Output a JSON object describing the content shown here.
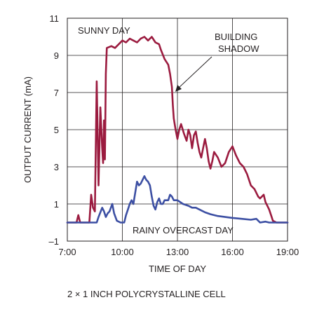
{
  "chart_data": {
    "type": "line",
    "xlabel": "TIME OF DAY",
    "ylabel": "OUTPUT CURRENT (mA)",
    "xlim": [
      7,
      19
    ],
    "ylim": [
      -1,
      11
    ],
    "x_ticks": [
      7,
      10,
      13,
      16,
      19
    ],
    "x_tick_labels": [
      "7:00",
      "10:00",
      "13:00",
      "16:00",
      "19:00"
    ],
    "y_ticks": [
      -1,
      1,
      3,
      5,
      7,
      9,
      11
    ],
    "y_tick_labels": [
      "–1",
      "1",
      "3",
      "5",
      "7",
      "9",
      "11"
    ],
    "grid": true,
    "series": [
      {
        "name": "SUNNY DAY",
        "color": "#9b1b3f",
        "points": [
          [
            7.0,
            0.0
          ],
          [
            7.5,
            0.0
          ],
          [
            7.6,
            0.4
          ],
          [
            7.7,
            0.0
          ],
          [
            8.2,
            0.0
          ],
          [
            8.3,
            1.5
          ],
          [
            8.4,
            0.8
          ],
          [
            8.5,
            0.6
          ],
          [
            8.6,
            7.6
          ],
          [
            8.7,
            2.0
          ],
          [
            8.8,
            6.2
          ],
          [
            8.9,
            4.0
          ],
          [
            8.95,
            3.2
          ],
          [
            9.0,
            5.5
          ],
          [
            9.05,
            3.4
          ],
          [
            9.1,
            8.0
          ],
          [
            9.15,
            9.4
          ],
          [
            9.4,
            9.5
          ],
          [
            9.6,
            9.4
          ],
          [
            9.8,
            9.6
          ],
          [
            10.0,
            9.8
          ],
          [
            10.2,
            9.7
          ],
          [
            10.4,
            9.9
          ],
          [
            10.6,
            9.8
          ],
          [
            10.8,
            9.7
          ],
          [
            11.0,
            9.9
          ],
          [
            11.2,
            10.0
          ],
          [
            11.4,
            9.8
          ],
          [
            11.6,
            10.0
          ],
          [
            11.8,
            9.7
          ],
          [
            12.0,
            9.6
          ],
          [
            12.1,
            9.3
          ],
          [
            12.3,
            8.8
          ],
          [
            12.5,
            8.5
          ],
          [
            12.6,
            8.0
          ],
          [
            12.7,
            7.3
          ],
          [
            12.75,
            6.3
          ],
          [
            12.8,
            5.6
          ],
          [
            12.9,
            5.0
          ],
          [
            13.0,
            4.5
          ],
          [
            13.1,
            5.0
          ],
          [
            13.2,
            5.3
          ],
          [
            13.35,
            4.8
          ],
          [
            13.5,
            4.4
          ],
          [
            13.6,
            5.0
          ],
          [
            13.7,
            4.7
          ],
          [
            13.8,
            4.0
          ],
          [
            13.9,
            4.7
          ],
          [
            14.0,
            4.9
          ],
          [
            14.1,
            4.3
          ],
          [
            14.2,
            3.8
          ],
          [
            14.3,
            3.5
          ],
          [
            14.4,
            4.0
          ],
          [
            14.5,
            4.5
          ],
          [
            14.6,
            4.0
          ],
          [
            14.7,
            3.3
          ],
          [
            14.8,
            2.9
          ],
          [
            14.9,
            3.3
          ],
          [
            15.0,
            3.8
          ],
          [
            15.2,
            3.5
          ],
          [
            15.4,
            3.0
          ],
          [
            15.6,
            3.2
          ],
          [
            15.8,
            3.8
          ],
          [
            16.0,
            4.1
          ],
          [
            16.2,
            3.6
          ],
          [
            16.4,
            3.2
          ],
          [
            16.6,
            3.0
          ],
          [
            16.8,
            2.6
          ],
          [
            17.0,
            2.0
          ],
          [
            17.2,
            1.8
          ],
          [
            17.3,
            1.6
          ],
          [
            17.4,
            1.4
          ],
          [
            17.5,
            1.3
          ],
          [
            17.7,
            1.5
          ],
          [
            17.8,
            1.1
          ],
          [
            17.9,
            0.9
          ],
          [
            18.0,
            0.7
          ],
          [
            18.1,
            0.4
          ],
          [
            18.2,
            0.1
          ],
          [
            18.4,
            0.0
          ],
          [
            19.0,
            0.0
          ]
        ]
      },
      {
        "name": "RAINY OVERCAST DAY",
        "color": "#3c4fa3",
        "points": [
          [
            7.0,
            0.0
          ],
          [
            8.6,
            0.0
          ],
          [
            8.7,
            0.3
          ],
          [
            8.9,
            0.8
          ],
          [
            9.0,
            0.6
          ],
          [
            9.1,
            0.3
          ],
          [
            9.2,
            0.5
          ],
          [
            9.3,
            0.6
          ],
          [
            9.45,
            1.0
          ],
          [
            9.55,
            0.5
          ],
          [
            9.7,
            0.1
          ],
          [
            9.9,
            0.0
          ],
          [
            10.1,
            0.0
          ],
          [
            10.2,
            0.4
          ],
          [
            10.3,
            0.7
          ],
          [
            10.4,
            1.0
          ],
          [
            10.5,
            1.2
          ],
          [
            10.6,
            1.0
          ],
          [
            10.7,
            1.6
          ],
          [
            10.8,
            2.2
          ],
          [
            10.9,
            2.0
          ],
          [
            11.0,
            2.1
          ],
          [
            11.2,
            2.5
          ],
          [
            11.3,
            2.3
          ],
          [
            11.4,
            2.2
          ],
          [
            11.5,
            2.0
          ],
          [
            11.6,
            1.4
          ],
          [
            11.7,
            0.9
          ],
          [
            11.8,
            0.7
          ],
          [
            11.9,
            1.1
          ],
          [
            12.0,
            1.3
          ],
          [
            12.1,
            1.0
          ],
          [
            12.2,
            1.0
          ],
          [
            12.3,
            1.2
          ],
          [
            12.5,
            1.2
          ],
          [
            12.6,
            1.5
          ],
          [
            12.7,
            1.4
          ],
          [
            12.8,
            1.2
          ],
          [
            13.0,
            1.2
          ],
          [
            13.3,
            1.0
          ],
          [
            13.6,
            0.9
          ],
          [
            13.8,
            0.8
          ],
          [
            14.0,
            0.8
          ],
          [
            14.2,
            0.7
          ],
          [
            14.5,
            0.55
          ],
          [
            14.8,
            0.45
          ],
          [
            15.2,
            0.35
          ],
          [
            15.6,
            0.3
          ],
          [
            16.0,
            0.25
          ],
          [
            16.5,
            0.2
          ],
          [
            17.0,
            0.15
          ],
          [
            17.3,
            0.2
          ],
          [
            17.5,
            0.0
          ],
          [
            17.8,
            0.05
          ],
          [
            18.0,
            0.0
          ],
          [
            19.0,
            0.0
          ]
        ]
      }
    ],
    "annotations": {
      "sunny_label": "SUNNY DAY",
      "rainy_label": "RAINY OVERCAST DAY",
      "shadow_line1": "BUILDING",
      "shadow_line2": "SHADOW"
    }
  },
  "caption": "2 × 1 INCH POLYCRYSTALLINE CELL"
}
